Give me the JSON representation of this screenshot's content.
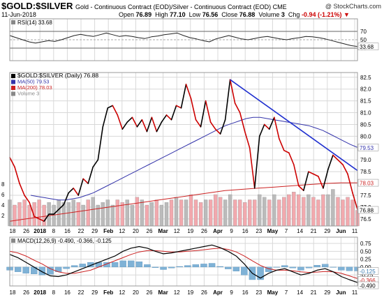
{
  "header": {
    "symbol": "$GOLD:$SILVER",
    "description": "Gold - Continuous Contract (EOD)/Silver - Continuous Contract (EOD) CME",
    "copyright": "@ StockCharts.com",
    "date": "11-Jun-2018",
    "open_label": "Open",
    "open": "76.89",
    "high_label": "High",
    "high": "77.10",
    "low_label": "Low",
    "low": "76.56",
    "close_label": "Close",
    "close": "76.88",
    "volume_label": "Volume",
    "volume": "3",
    "chg_label": "Chg",
    "chg": "-0.94 (-1.21%)"
  },
  "chart_data": [
    {
      "type": "line",
      "panel": "rsi",
      "legend": "RSI(14) 33.68",
      "ylim": [
        0,
        100
      ],
      "y_ticks": [
        "70",
        "50",
        "30"
      ],
      "reference_lines": [
        70,
        50,
        30
      ],
      "last_value_label": "33.68",
      "values": [
        60,
        55,
        50,
        45,
        42,
        45,
        48,
        46,
        50,
        55,
        60,
        63,
        60,
        58,
        62,
        66,
        62,
        58,
        60,
        58,
        55,
        53,
        57,
        59,
        62,
        64,
        66,
        60,
        55,
        52,
        48,
        45,
        52,
        56,
        60,
        56,
        52,
        50,
        53,
        56,
        58,
        55,
        52,
        50,
        53,
        55,
        58,
        57,
        55,
        52,
        48,
        44,
        40,
        36,
        34
      ]
    },
    {
      "type": "line",
      "panel": "price",
      "legend": [
        {
          "label": "$GOLD:$SILVER (Daily) 76.88",
          "color": "#000000"
        },
        {
          "label": "MA(50) 79.53",
          "color": "#3333aa"
        },
        {
          "label": "MA(200) 78.03",
          "color": "#cc2222"
        },
        {
          "label": "Volume 3",
          "color": "#888888"
        }
      ],
      "ylim": [
        76.2,
        82.7
      ],
      "y_ticks": [
        "82.5",
        "82.0",
        "81.5",
        "81.0",
        "80.5",
        "80.0",
        "79.5",
        "79.0",
        "78.5",
        "78.0",
        "77.5",
        "77.0",
        "76.5"
      ],
      "volume_ticks": [
        "8",
        "6",
        "4",
        "2"
      ],
      "last_value_labels": {
        "ma50": "79.53",
        "ma200": "78.03",
        "close": "76.88"
      },
      "x_tick_labels": [
        "18",
        "26",
        "2018",
        "8",
        "16",
        "22",
        "29",
        "Feb",
        "12",
        "20",
        "26",
        "Mar",
        "12",
        "19",
        "26",
        "Apr",
        "9",
        "16",
        "23",
        "May",
        "7",
        "14",
        "21",
        "29",
        "Jun",
        "11"
      ],
      "x_tick_bold": [
        "2018",
        "Feb",
        "Mar",
        "Apr",
        "May",
        "Jun"
      ],
      "close": [
        79.1,
        78.7,
        78.0,
        77.5,
        77.2,
        76.6,
        76.5,
        76.4,
        76.7,
        76.7,
        76.9,
        77.1,
        77.6,
        77.8,
        77.5,
        78.2,
        78.0,
        78.7,
        79.0,
        80.4,
        81.2,
        81.3,
        80.9,
        80.3,
        80.6,
        80.8,
        80.4,
        80.7,
        80.2,
        80.8,
        80.2,
        80.6,
        80.9,
        80.7,
        81.3,
        81.2,
        82.2,
        81.6,
        80.7,
        80.4,
        81.5,
        80.6,
        80.3,
        80.1,
        80.7,
        82.4,
        81.4,
        81.0,
        80.2,
        79.5,
        77.8,
        80.0,
        80.5,
        80.3,
        80.8,
        79.9,
        79.4,
        79.3,
        78.8,
        77.9,
        77.7,
        78.5,
        78.4,
        78.3,
        77.8,
        78.6,
        79.2,
        79.0,
        78.8,
        78.4,
        77.6,
        76.9
      ],
      "ma50": [
        77.5,
        77.45,
        77.4,
        77.35,
        77.3,
        77.3,
        77.35,
        77.4,
        77.5,
        77.6,
        77.75,
        77.9,
        78.05,
        78.2,
        78.35,
        78.5,
        78.65,
        78.8,
        78.95,
        79.1,
        79.25,
        79.4,
        79.55,
        79.7,
        79.85,
        80.0,
        80.15,
        80.3,
        80.45,
        80.55,
        80.65,
        80.75,
        80.8,
        80.8,
        80.75,
        80.7,
        80.65,
        80.6,
        80.55,
        80.5,
        80.45,
        80.35,
        80.25,
        80.1,
        79.95,
        79.8,
        79.65,
        79.53
      ],
      "ma200": [
        76.4,
        76.5,
        76.6,
        76.7,
        76.8,
        76.9,
        77.0,
        77.1,
        77.2,
        77.3,
        77.4,
        77.5,
        77.6,
        77.7,
        77.75,
        77.8,
        77.85,
        77.9,
        77.95,
        78.0,
        78.03,
        78.03
      ],
      "volume": [
        5,
        4,
        4.5,
        5,
        4,
        4.5,
        5,
        4,
        4.5,
        4,
        5,
        4.5,
        4.5,
        5,
        4.5,
        4,
        5,
        5.5,
        4,
        4.5,
        5,
        4,
        5,
        4.5,
        5,
        4,
        5.5,
        5,
        4,
        4.5,
        5,
        4,
        4.5,
        5,
        5.5,
        5,
        5,
        6,
        5,
        4.5,
        5,
        5,
        6,
        5.5,
        5,
        6,
        5,
        5,
        4.5,
        5,
        5,
        6,
        5.5,
        5,
        6,
        5,
        5.5,
        6,
        6.5,
        6,
        5.5,
        6,
        5.5,
        5,
        6,
        6,
        7,
        5.5,
        5,
        5.5,
        5,
        3
      ]
    },
    {
      "type": "line",
      "panel": "macd",
      "legend": "MACD(12,26,9) -0.490, -0.366, -0.125",
      "ylim": [
        -0.6,
        0.95
      ],
      "y_ticks": [
        "0.75",
        "0.50",
        "0.25",
        "0.00",
        "-0.25"
      ],
      "last_value_labels": [
        "-0.125",
        "-0.366",
        "-0.490"
      ],
      "series": [
        {
          "name": "MACD",
          "values": [
            0.4,
            0.3,
            0.15,
            0.0,
            -0.15,
            -0.28,
            -0.3,
            -0.25,
            -0.15,
            -0.05,
            0.05,
            0.15,
            0.25,
            0.35,
            0.5,
            0.6,
            0.65,
            0.6,
            0.5,
            0.42,
            0.45,
            0.5,
            0.55,
            0.6,
            0.65,
            0.7,
            0.62,
            0.5,
            0.35,
            0.1,
            -0.2,
            -0.35,
            -0.2,
            -0.1,
            -0.05,
            -0.15,
            -0.25,
            -0.2,
            -0.1,
            -0.05,
            -0.15,
            -0.3,
            -0.4,
            -0.49
          ]
        },
        {
          "name": "Signal",
          "values": [
            0.5,
            0.45,
            0.35,
            0.22,
            0.1,
            -0.05,
            -0.15,
            -0.2,
            -0.2,
            -0.15,
            -0.1,
            0.0,
            0.1,
            0.2,
            0.3,
            0.4,
            0.48,
            0.52,
            0.52,
            0.5,
            0.48,
            0.48,
            0.5,
            0.52,
            0.55,
            0.58,
            0.6,
            0.56,
            0.48,
            0.35,
            0.2,
            0.05,
            -0.05,
            -0.1,
            -0.1,
            -0.12,
            -0.15,
            -0.17,
            -0.16,
            -0.14,
            -0.15,
            -0.2,
            -0.28,
            -0.366
          ]
        }
      ]
    }
  ]
}
